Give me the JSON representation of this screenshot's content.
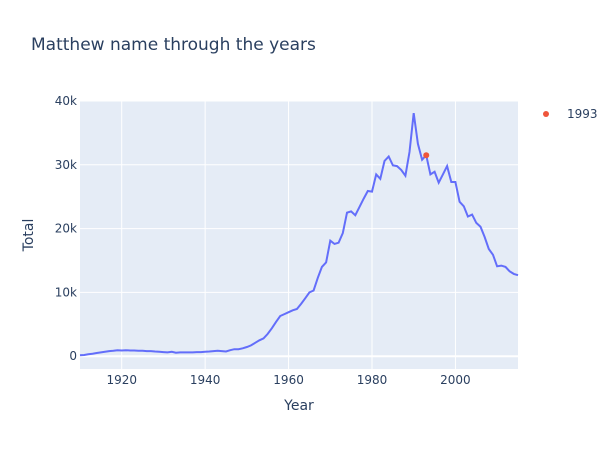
{
  "chart_data": {
    "type": "line",
    "title": "Matthew name through the years",
    "xlabel": "Year",
    "ylabel": "Total",
    "xlim": [
      1910,
      2015
    ],
    "ylim": [
      -2000,
      40000
    ],
    "x_ticks": [
      1920,
      1940,
      1960,
      1980,
      2000
    ],
    "x_tick_labels": [
      "1920",
      "1940",
      "1960",
      "1980",
      "2000"
    ],
    "y_ticks": [
      0,
      10000,
      20000,
      30000,
      40000
    ],
    "y_tick_labels": [
      "0",
      "10k",
      "20k",
      "30k",
      "40k"
    ],
    "grid": true,
    "legend_position": "right",
    "colors": {
      "line": "#636efa",
      "marker": "#ef553b",
      "plot_bg": "#e5ecf6",
      "grid": "#ffffff"
    },
    "series": [
      {
        "mode": "lines",
        "x": [
          1910,
          1911,
          1912,
          1913,
          1914,
          1915,
          1916,
          1917,
          1918,
          1919,
          1920,
          1921,
          1922,
          1923,
          1924,
          1925,
          1926,
          1927,
          1928,
          1929,
          1930,
          1931,
          1932,
          1933,
          1934,
          1935,
          1936,
          1937,
          1938,
          1939,
          1940,
          1941,
          1942,
          1943,
          1944,
          1945,
          1946,
          1947,
          1948,
          1949,
          1950,
          1951,
          1952,
          1953,
          1954,
          1955,
          1956,
          1957,
          1958,
          1959,
          1960,
          1961,
          1962,
          1963,
          1964,
          1965,
          1966,
          1967,
          1968,
          1969,
          1970,
          1971,
          1972,
          1973,
          1974,
          1975,
          1976,
          1977,
          1978,
          1979,
          1980,
          1981,
          1982,
          1983,
          1984,
          1985,
          1986,
          1987,
          1988,
          1989,
          1990,
          1991,
          1992,
          1993,
          1994,
          1995,
          1996,
          1997,
          1998,
          1999,
          2000,
          2001,
          2002,
          2003,
          2004,
          2005,
          2006,
          2007,
          2008,
          2009,
          2010,
          2011,
          2012,
          2013,
          2014,
          2015
        ],
        "y": [
          150,
          200,
          300,
          400,
          500,
          600,
          700,
          800,
          850,
          950,
          900,
          950,
          900,
          900,
          850,
          850,
          800,
          800,
          750,
          700,
          650,
          600,
          700,
          550,
          600,
          600,
          600,
          600,
          650,
          650,
          700,
          750,
          800,
          850,
          800,
          750,
          950,
          1100,
          1100,
          1250,
          1450,
          1700,
          2100,
          2500,
          2800,
          3500,
          4400,
          5400,
          6300,
          6600,
          6900,
          7200,
          7400,
          8200,
          9100,
          10000,
          10300,
          12300,
          14000,
          14700,
          18100,
          17600,
          17800,
          19300,
          22500,
          22700,
          22100,
          23400,
          24700,
          25900,
          25800,
          28500,
          27800,
          30600,
          31300,
          29900,
          29800,
          29200,
          28300,
          32000,
          38100,
          33300,
          30800,
          31500,
          28500,
          28900,
          27200,
          28500,
          29800,
          27300,
          27300,
          24200,
          23500,
          21900,
          22200,
          20900,
          20300,
          18700,
          16800,
          15900,
          14100,
          14200,
          14000,
          13300,
          12900,
          12700
        ]
      },
      {
        "name": "1993",
        "mode": "markers",
        "x": [
          1993
        ],
        "y": [
          31500
        ]
      }
    ]
  }
}
